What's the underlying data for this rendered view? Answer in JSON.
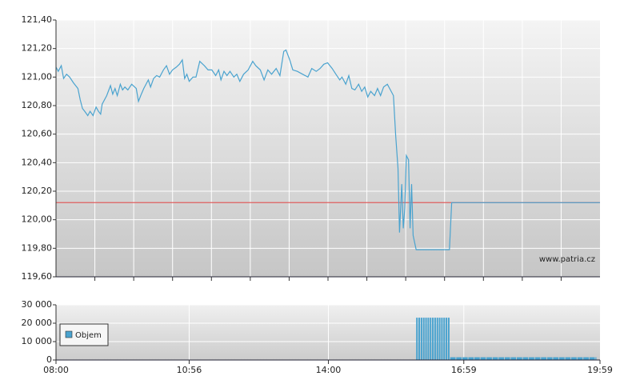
{
  "chart_data": [
    {
      "type": "line",
      "x": [
        "08:00",
        "08:03",
        "08:07",
        "08:10",
        "08:14",
        "08:18",
        "08:23",
        "08:29",
        "08:32",
        "08:35",
        "08:38",
        "08:42",
        "08:45",
        "08:49",
        "08:53",
        "08:56",
        "08:59",
        "09:01",
        "09:07",
        "09:12",
        "09:15",
        "09:18",
        "09:21",
        "09:25",
        "09:28",
        "09:31",
        "09:35",
        "09:40",
        "09:46",
        "09:49",
        "09:52",
        "09:56",
        "10:02",
        "10:05",
        "10:09",
        "10:13",
        "10:17",
        "10:22",
        "10:26",
        "10:30",
        "10:34",
        "10:39",
        "10:43",
        "10:47",
        "10:50",
        "10:53",
        "10:56",
        "11:01",
        "11:05",
        "11:10",
        "11:16",
        "11:21",
        "11:26",
        "11:31",
        "11:35",
        "11:38",
        "11:42",
        "11:46",
        "11:50",
        "11:55",
        "11:59",
        "12:03",
        "12:08",
        "12:14",
        "12:20",
        "12:24",
        "12:30",
        "12:35",
        "12:40",
        "12:45",
        "12:51",
        "12:56",
        "13:01",
        "13:04",
        "13:09",
        "13:13",
        "13:19",
        "13:26",
        "13:33",
        "13:38",
        "13:44",
        "13:49",
        "13:54",
        "13:59",
        "14:05",
        "14:10",
        "14:15",
        "14:18",
        "14:23",
        "14:27",
        "14:31",
        "14:35",
        "14:40",
        "14:44",
        "14:48",
        "14:52",
        "14:56",
        "15:01",
        "15:05",
        "15:09",
        "15:13",
        "15:18",
        "15:22",
        "15:26",
        "15:29",
        "15:32",
        "15:34",
        "15:37",
        "15:39",
        "15:41",
        "15:43",
        "15:46",
        "15:48",
        "15:50",
        "15:52",
        "15:56",
        "16:40",
        "16:43",
        "19:59"
      ],
      "series": [
        {
          "color": "#4aa3cf",
          "values": [
            121.07,
            121.04,
            121.08,
            120.99,
            121.02,
            121.0,
            120.96,
            120.92,
            120.84,
            120.78,
            120.76,
            120.73,
            120.76,
            120.73,
            120.79,
            120.76,
            120.74,
            120.81,
            120.87,
            120.94,
            120.88,
            120.92,
            120.87,
            120.95,
            120.91,
            120.93,
            120.91,
            120.95,
            120.92,
            120.83,
            120.87,
            120.92,
            120.98,
            120.93,
            120.99,
            121.01,
            121.0,
            121.05,
            121.08,
            121.02,
            121.05,
            121.07,
            121.09,
            121.12,
            120.99,
            121.02,
            120.97,
            121.0,
            121.0,
            121.11,
            121.08,
            121.05,
            121.05,
            121.01,
            121.05,
            120.98,
            121.04,
            121.01,
            121.04,
            121.0,
            121.02,
            120.97,
            121.02,
            121.05,
            121.11,
            121.08,
            121.05,
            120.98,
            121.05,
            121.02,
            121.06,
            121.01,
            121.18,
            121.19,
            121.12,
            121.05,
            121.04,
            121.02,
            121.0,
            121.06,
            121.04,
            121.06,
            121.09,
            121.1,
            121.06,
            121.02,
            120.98,
            121.0,
            120.95,
            121.01,
            120.92,
            120.91,
            120.95,
            120.9,
            120.93,
            120.86,
            120.9,
            120.87,
            120.92,
            120.87,
            120.93,
            120.95,
            120.91,
            120.87,
            120.59,
            120.36,
            119.91,
            120.25,
            119.94,
            120.08,
            120.45,
            120.42,
            119.94,
            120.25,
            119.89,
            119.79,
            119.79,
            120.12,
            120.12
          ]
        }
      ],
      "reference_line": {
        "value": 120.12,
        "color": "#e06060"
      },
      "xlim": [
        "08:00",
        "19:59"
      ],
      "ylim": [
        119.6,
        121.4
      ],
      "yticks": [
        {
          "value": 119.6,
          "label": "119,60"
        },
        {
          "value": 119.8,
          "label": "119,80"
        },
        {
          "value": 120,
          "label": "120,00"
        },
        {
          "value": 120.2,
          "label": "120,20"
        },
        {
          "value": 120.4,
          "label": "120,40"
        },
        {
          "value": 120.6,
          "label": "120,60"
        },
        {
          "value": 120.8,
          "label": "120,80"
        },
        {
          "value": 121,
          "label": "121,00"
        },
        {
          "value": 121.2,
          "label": "121,20"
        },
        {
          "value": 121.4,
          "label": "121,40"
        }
      ],
      "grid": true,
      "watermark": "www.patria.cz"
    },
    {
      "type": "bar",
      "x": [
        "15:56",
        "15:59",
        "16:02",
        "16:05",
        "16:08",
        "16:11",
        "16:14",
        "16:17",
        "16:20",
        "16:23",
        "16:26",
        "16:29",
        "16:32",
        "16:35",
        "16:38",
        "16:41",
        "16:49",
        "16:57",
        "17:05",
        "17:13",
        "17:21",
        "17:29",
        "17:37",
        "17:45",
        "17:53",
        "18:01",
        "18:09",
        "18:17",
        "18:25",
        "18:33",
        "18:41",
        "18:49",
        "18:57",
        "19:05",
        "19:13",
        "19:21",
        "19:29",
        "19:37",
        "19:45",
        "19:53"
      ],
      "series": [
        {
          "name": "Objem",
          "color": "#4aa3cf",
          "values": [
            23000,
            23000,
            23000,
            23000,
            23000,
            23000,
            23000,
            23000,
            23000,
            23000,
            23000,
            23000,
            23000,
            23000,
            23000,
            1500,
            1500,
            1500,
            1500,
            1500,
            1500,
            1500,
            1500,
            1500,
            1500,
            1500,
            1500,
            1500,
            1500,
            1500,
            1500,
            1500,
            1500,
            1500,
            1500,
            1500,
            1500,
            1500,
            1500,
            1500
          ]
        }
      ],
      "xlim": [
        "08:00",
        "19:59"
      ],
      "xticks": [
        "08:00",
        "10:56",
        "14:00",
        "16:59",
        "19:59"
      ],
      "ylim": [
        0,
        30000
      ],
      "yticks": [
        {
          "value": 0,
          "label": "0"
        },
        {
          "value": 10000,
          "label": "10 000"
        },
        {
          "value": 20000,
          "label": "20 000"
        },
        {
          "value": 30000,
          "label": "30 000"
        }
      ],
      "legend": "upper left"
    }
  ]
}
